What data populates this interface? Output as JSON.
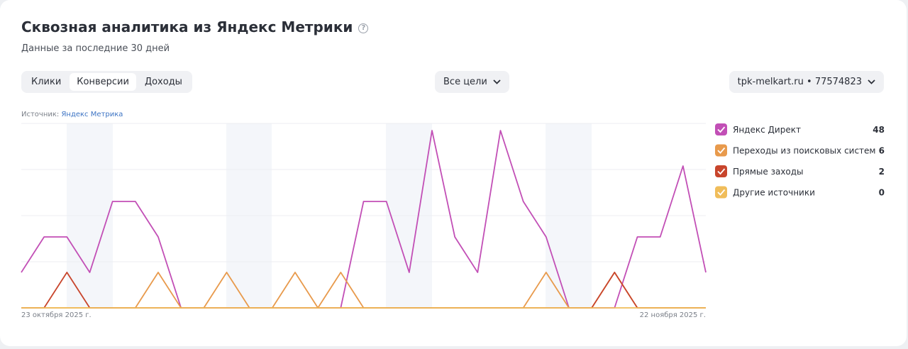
{
  "header": {
    "title": "Сквозная аналитика из Яндекс Метрики",
    "subtitle": "Данные за последние 30 дней"
  },
  "tabs": [
    "Клики",
    "Конверсии",
    "Доходы"
  ],
  "active_tab": 1,
  "goal_filter": "Все цели",
  "counter_select": "tpk-melkart.ru • 77574823",
  "source": {
    "label": "Источник:",
    "link": "Яндекс Метрика"
  },
  "chart_data": {
    "type": "line",
    "categories": [
      "23 октября 2025 г.",
      null,
      null,
      null,
      null,
      null,
      null,
      null,
      null,
      null,
      null,
      null,
      null,
      null,
      null,
      null,
      null,
      null,
      null,
      null,
      null,
      null,
      null,
      null,
      null,
      null,
      null,
      null,
      null,
      null,
      "22 ноября 2025 г."
    ],
    "ylim": [
      0,
      5.2
    ],
    "yticks": [
      0,
      1.3,
      2.6,
      3.9,
      5.2
    ],
    "grid": true,
    "series": [
      {
        "name": "Яндекс Директ",
        "color": "#c24fb6",
        "total": 48,
        "values": [
          1,
          2,
          2,
          1,
          3,
          3,
          2,
          0,
          0,
          0,
          0,
          0,
          0,
          0,
          0,
          3,
          3,
          1,
          5,
          2,
          1,
          5,
          3,
          2,
          0,
          0,
          0,
          2,
          2,
          4,
          1
        ]
      },
      {
        "name": "Переходы из поисковых систем",
        "color": "#e89a4c",
        "total": 6,
        "values": [
          0,
          0,
          0,
          0,
          0,
          0,
          1,
          0,
          0,
          1,
          0,
          0,
          1,
          0,
          1,
          0,
          0,
          0,
          0,
          0,
          0,
          0,
          0,
          1,
          0,
          0,
          1,
          0,
          0,
          0,
          0
        ]
      },
      {
        "name": "Прямые заходы",
        "color": "#c8452c",
        "total": 2,
        "values": [
          0,
          0,
          1,
          0,
          0,
          0,
          0,
          0,
          0,
          0,
          0,
          0,
          0,
          0,
          0,
          0,
          0,
          0,
          0,
          0,
          0,
          0,
          0,
          0,
          0,
          0,
          1,
          0,
          0,
          0,
          0
        ]
      },
      {
        "name": "Другие источники",
        "color": "#f0bd5a",
        "total": 0,
        "values": [
          0,
          0,
          0,
          0,
          0,
          0,
          0,
          0,
          0,
          0,
          0,
          0,
          0,
          0,
          0,
          0,
          0,
          0,
          0,
          0,
          0,
          0,
          0,
          0,
          0,
          0,
          0,
          0,
          0,
          0,
          0
        ]
      }
    ]
  }
}
